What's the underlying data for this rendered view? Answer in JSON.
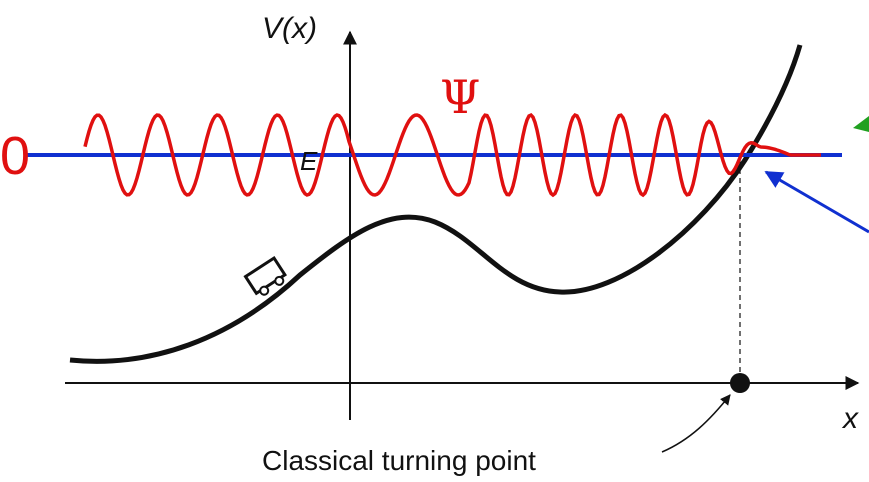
{
  "labels": {
    "potential_axis": "V(x)",
    "wavefunction": "Ψ",
    "zero": "0",
    "energy": "E",
    "position_axis": "x",
    "turning_point": "Classical turning point"
  }
}
